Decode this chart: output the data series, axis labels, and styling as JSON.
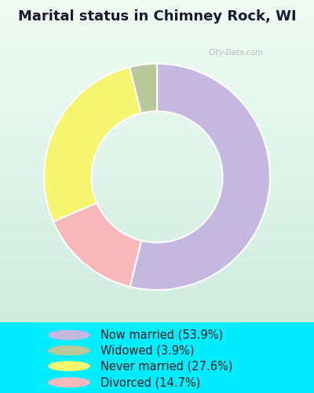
{
  "title": "Marital status in Chimney Rock, WI",
  "values": [
    53.9,
    14.7,
    27.6,
    3.9
  ],
  "colors": [
    "#c4b8e0",
    "#f7b8bc",
    "#f5f56e",
    "#b8c89a"
  ],
  "start_angle": 90,
  "legend_labels": [
    "Now married (53.9%)",
    "Widowed (3.9%)",
    "Never married (27.6%)",
    "Divorced (14.7%)"
  ],
  "legend_colors": [
    "#c4b8e0",
    "#b8c89a",
    "#f5f56e",
    "#f7b8bc"
  ],
  "title_fontsize": 13,
  "legend_fontsize": 10.5,
  "watermark": "City-Data.com",
  "bg_top": "#00eeff",
  "chart_bg_top": "#e8f5f0",
  "chart_bg_bottom": "#d0ece0",
  "donut_width": 0.42
}
